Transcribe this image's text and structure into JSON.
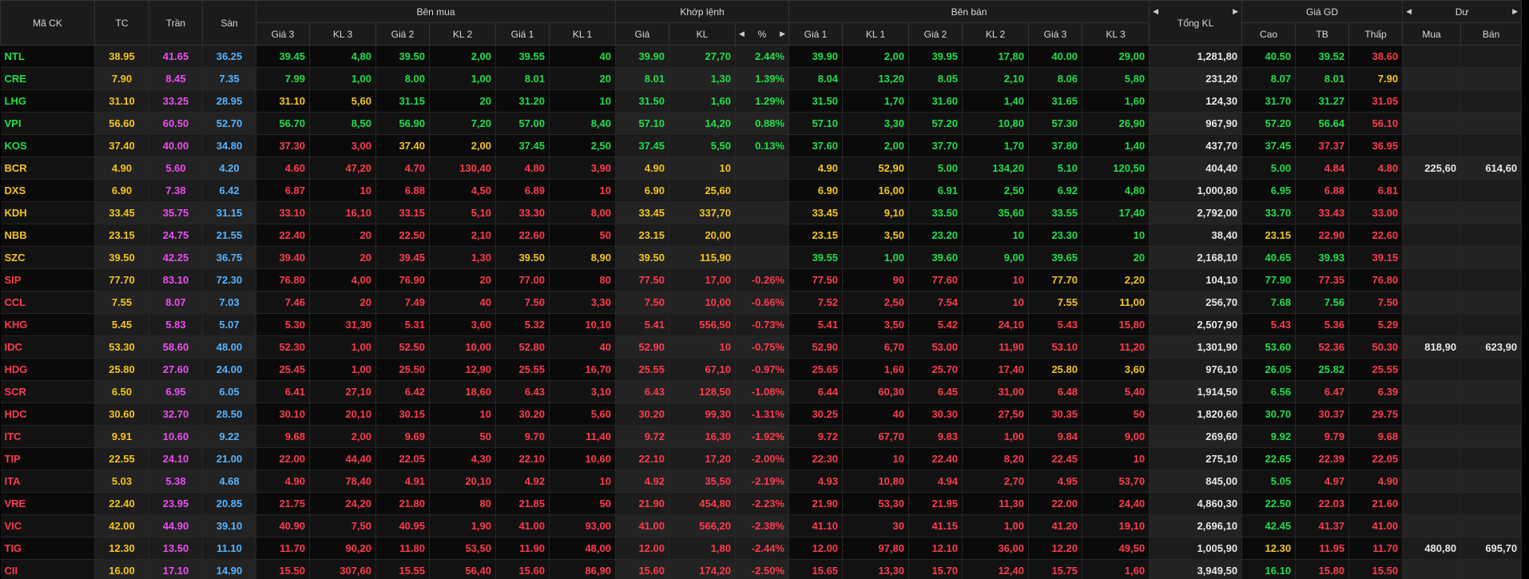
{
  "header": {
    "top": [
      "Mã CK",
      "TC",
      "Trần",
      "Sàn",
      "Bên mua",
      "Khớp lệnh",
      "Bên bán",
      "Tổng KL",
      "Giá GD",
      "Dư"
    ],
    "sub": [
      "Giá 3",
      "KL 3",
      "Giá 2",
      "KL 2",
      "Giá 1",
      "KL 1",
      "Giá",
      "KL",
      "%",
      "Giá 1",
      "KL 1",
      "Giá 2",
      "KL 2",
      "Giá 3",
      "KL 3",
      "Cao",
      "TB",
      "Thấp",
      "Mua",
      "Bán"
    ]
  },
  "rows": [
    [
      "NTL",
      "38.95",
      "41.65",
      "36.25",
      "39.45",
      "4,80",
      "39.50",
      "2,00",
      "39.55",
      "40",
      "39.90",
      "27,70",
      "2.44%",
      "39.90",
      "2,00",
      "39.95",
      "17,80",
      "40.00",
      "29,00",
      "1,281,80",
      "40.50",
      "39.52",
      "38.60",
      null,
      null
    ],
    [
      "CRE",
      "7.90",
      "8.45",
      "7.35",
      "7.99",
      "1,00",
      "8.00",
      "1,00",
      "8.01",
      "20",
      "8.01",
      "1,30",
      "1.39%",
      "8.04",
      "13,20",
      "8.05",
      "2,10",
      "8.06",
      "5,80",
      "231,20",
      "8.07",
      "8.01",
      "7.90",
      null,
      null
    ],
    [
      "LHG",
      "31.10",
      "33.25",
      "28.95",
      "31.10",
      "5,60",
      "31.15",
      "20",
      "31.20",
      "10",
      "31.50",
      "1,60",
      "1.29%",
      "31.50",
      "1,70",
      "31.60",
      "1,40",
      "31.65",
      "1,60",
      "124,30",
      "31.70",
      "31.27",
      "31.05",
      null,
      null
    ],
    [
      "VPI",
      "56.60",
      "60.50",
      "52.70",
      "56.70",
      "8,50",
      "56.90",
      "7,20",
      "57.00",
      "8,40",
      "57.10",
      "14,20",
      "0.88%",
      "57.10",
      "3,30",
      "57.20",
      "10,80",
      "57.30",
      "26,90",
      "967,90",
      "57.20",
      "56.64",
      "56.10",
      null,
      null
    ],
    [
      "KOS",
      "37.40",
      "40.00",
      "34.80",
      "37.30",
      "3,00",
      "37.40",
      "2,00",
      "37.45",
      "2,50",
      "37.45",
      "5,50",
      "0.13%",
      "37.60",
      "2,00",
      "37.70",
      "1,70",
      "37.80",
      "1,40",
      "437,70",
      "37.45",
      "37.37",
      "36.95",
      null,
      null
    ],
    [
      "BCR",
      "4.90",
      "5.60",
      "4.20",
      "4.60",
      "47,20",
      "4.70",
      "130,40",
      "4.80",
      "3,90",
      "4.90",
      "10",
      null,
      "4.90",
      "52,90",
      "5.00",
      "134,20",
      "5.10",
      "120,50",
      "404,40",
      "5.00",
      "4.84",
      "4.80",
      "225,60",
      "614,60"
    ],
    [
      "DXS",
      "6.90",
      "7.38",
      "6.42",
      "6.87",
      "10",
      "6.88",
      "4,50",
      "6.89",
      "10",
      "6.90",
      "25,60",
      null,
      "6.90",
      "16,00",
      "6.91",
      "2,50",
      "6.92",
      "4,80",
      "1,000,80",
      "6.95",
      "6.88",
      "6.81",
      null,
      null
    ],
    [
      "KDH",
      "33.45",
      "35.75",
      "31.15",
      "33.10",
      "16,10",
      "33.15",
      "5,10",
      "33.30",
      "8,00",
      "33.45",
      "337,70",
      null,
      "33.45",
      "9,10",
      "33.50",
      "35,60",
      "33.55",
      "17,40",
      "2,792,00",
      "33.70",
      "33.43",
      "33.00",
      null,
      null
    ],
    [
      "NBB",
      "23.15",
      "24.75",
      "21.55",
      "22.40",
      "20",
      "22.50",
      "2,10",
      "22.60",
      "50",
      "23.15",
      "20,00",
      null,
      "23.15",
      "3,50",
      "23.20",
      "10",
      "23.30",
      "10",
      "38,40",
      "23.15",
      "22.90",
      "22.60",
      null,
      null
    ],
    [
      "SZC",
      "39.50",
      "42.25",
      "36.75",
      "39.40",
      "20",
      "39.45",
      "1,30",
      "39.50",
      "8,90",
      "39.50",
      "115,90",
      null,
      "39.55",
      "1,00",
      "39.60",
      "9,00",
      "39.65",
      "20",
      "2,168,10",
      "40.65",
      "39.93",
      "39.15",
      null,
      null
    ],
    [
      "SIP",
      "77.70",
      "83.10",
      "72.30",
      "76.80",
      "4,00",
      "76.90",
      "20",
      "77.00",
      "80",
      "77.50",
      "17,00",
      "-0.26%",
      "77.50",
      "90",
      "77.60",
      "10",
      "77.70",
      "2,20",
      "104,10",
      "77.90",
      "77.35",
      "76.80",
      null,
      null
    ],
    [
      "CCL",
      "7.55",
      "8.07",
      "7.03",
      "7.46",
      "20",
      "7.49",
      "40",
      "7.50",
      "3,30",
      "7.50",
      "10,00",
      "-0.66%",
      "7.52",
      "2,50",
      "7.54",
      "10",
      "7.55",
      "11,00",
      "256,70",
      "7.68",
      "7.56",
      "7.50",
      null,
      null
    ],
    [
      "KHG",
      "5.45",
      "5.83",
      "5.07",
      "5.30",
      "31,30",
      "5.31",
      "3,60",
      "5.32",
      "10,10",
      "5.41",
      "556,50",
      "-0.73%",
      "5.41",
      "3,50",
      "5.42",
      "24,10",
      "5.43",
      "15,80",
      "2,507,90",
      "5.43",
      "5.36",
      "5.29",
      null,
      null
    ],
    [
      "IDC",
      "53.30",
      "58.60",
      "48.00",
      "52.30",
      "1,00",
      "52.50",
      "10,00",
      "52.80",
      "40",
      "52.90",
      "10",
      "-0.75%",
      "52.90",
      "6,70",
      "53.00",
      "11,90",
      "53.10",
      "11,20",
      "1,301,90",
      "53.60",
      "52.36",
      "50.30",
      "818,90",
      "623,90"
    ],
    [
      "HDG",
      "25.80",
      "27.60",
      "24.00",
      "25.45",
      "1,00",
      "25.50",
      "12,90",
      "25.55",
      "16,70",
      "25.55",
      "67,10",
      "-0.97%",
      "25.65",
      "1,60",
      "25.70",
      "17,40",
      "25.80",
      "3,60",
      "976,10",
      "26.05",
      "25.82",
      "25.55",
      null,
      null
    ],
    [
      "SCR",
      "6.50",
      "6.95",
      "6.05",
      "6.41",
      "27,10",
      "6.42",
      "18,60",
      "6.43",
      "3,10",
      "6.43",
      "128,50",
      "-1.08%",
      "6.44",
      "60,30",
      "6.45",
      "31,00",
      "6.48",
      "5,40",
      "1,914,50",
      "6.56",
      "6.47",
      "6.39",
      null,
      null
    ],
    [
      "HDC",
      "30.60",
      "32.70",
      "28.50",
      "30.10",
      "20,10",
      "30.15",
      "10",
      "30.20",
      "5,60",
      "30.20",
      "99,30",
      "-1.31%",
      "30.25",
      "40",
      "30.30",
      "27,50",
      "30.35",
      "50",
      "1,820,60",
      "30.70",
      "30.37",
      "29.75",
      null,
      null
    ],
    [
      "ITC",
      "9.91",
      "10.60",
      "9.22",
      "9.68",
      "2,00",
      "9.69",
      "50",
      "9.70",
      "11,40",
      "9.72",
      "16,30",
      "-1.92%",
      "9.72",
      "67,70",
      "9.83",
      "1,00",
      "9.84",
      "9,00",
      "269,60",
      "9.92",
      "9.79",
      "9.68",
      null,
      null
    ],
    [
      "TIP",
      "22.55",
      "24.10",
      "21.00",
      "22.00",
      "44,40",
      "22.05",
      "4,30",
      "22.10",
      "10,60",
      "22.10",
      "17,20",
      "-2.00%",
      "22.30",
      "10",
      "22.40",
      "8,20",
      "22.45",
      "10",
      "275,10",
      "22.65",
      "22.39",
      "22.05",
      null,
      null
    ],
    [
      "ITA",
      "5.03",
      "5.38",
      "4.68",
      "4.90",
      "78,40",
      "4.91",
      "20,10",
      "4.92",
      "10",
      "4.92",
      "35,50",
      "-2.19%",
      "4.93",
      "10,80",
      "4.94",
      "2,70",
      "4.95",
      "53,70",
      "845,00",
      "5.05",
      "4.97",
      "4.90",
      null,
      null
    ],
    [
      "VRE",
      "22.40",
      "23.95",
      "20.85",
      "21.75",
      "24,20",
      "21.80",
      "80",
      "21.85",
      "50",
      "21.90",
      "454,80",
      "-2.23%",
      "21.90",
      "53,30",
      "21.95",
      "11,30",
      "22.00",
      "24,40",
      "4,860,30",
      "22.50",
      "22.03",
      "21.60",
      null,
      null
    ],
    [
      "VIC",
      "42.00",
      "44.90",
      "39.10",
      "40.90",
      "7,50",
      "40.95",
      "1,90",
      "41.00",
      "93,00",
      "41.00",
      "566,20",
      "-2.38%",
      "41.10",
      "30",
      "41.15",
      "1,00",
      "41.20",
      "19,10",
      "2,696,10",
      "42.45",
      "41.37",
      "41.00",
      null,
      null
    ],
    [
      "TIG",
      "12.30",
      "13.50",
      "11.10",
      "11.70",
      "90,20",
      "11.80",
      "53,50",
      "11.90",
      "48,00",
      "12.00",
      "1,80",
      "-2.44%",
      "12.00",
      "97,80",
      "12.10",
      "36,00",
      "12.20",
      "49,50",
      "1,005,90",
      "12.30",
      "11.95",
      "11.70",
      "480,80",
      "695,70"
    ],
    [
      "CII",
      "16.00",
      "17.10",
      "14.90",
      "15.50",
      "307,60",
      "15.55",
      "56,40",
      "15.60",
      "86,90",
      "15.60",
      "174,20",
      "-2.50%",
      "15.65",
      "13,30",
      "15.70",
      "12,40",
      "15.75",
      "1,60",
      "3,949,50",
      "16.10",
      "15.80",
      "15.50",
      null,
      null
    ]
  ]
}
